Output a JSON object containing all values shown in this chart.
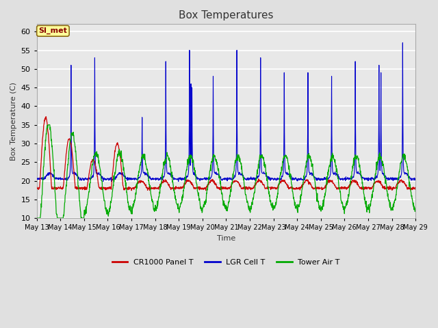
{
  "title": "Box Temperatures",
  "ylabel": "Box Temperature (C)",
  "xlabel": "Time",
  "ylim": [
    10,
    62
  ],
  "yticks": [
    10,
    15,
    20,
    25,
    30,
    35,
    40,
    45,
    50,
    55,
    60
  ],
  "bg_color": "#e0e0e0",
  "plot_bg_color": "#e8e8e8",
  "grid_color": "#ffffff",
  "annotation_text": "SI_met",
  "annotation_bg": "#ffff99",
  "annotation_border": "#8b6914",
  "annotation_text_color": "#880000",
  "colors": {
    "panel": "#cc0000",
    "lgr": "#0000cc",
    "tower": "#00aa00"
  },
  "legend_labels": [
    "CR1000 Panel T",
    "LGR Cell T",
    "Tower Air T"
  ],
  "n_days": 16,
  "start_day": 13,
  "figsize": [
    6.4,
    4.8
  ],
  "dpi": 100
}
